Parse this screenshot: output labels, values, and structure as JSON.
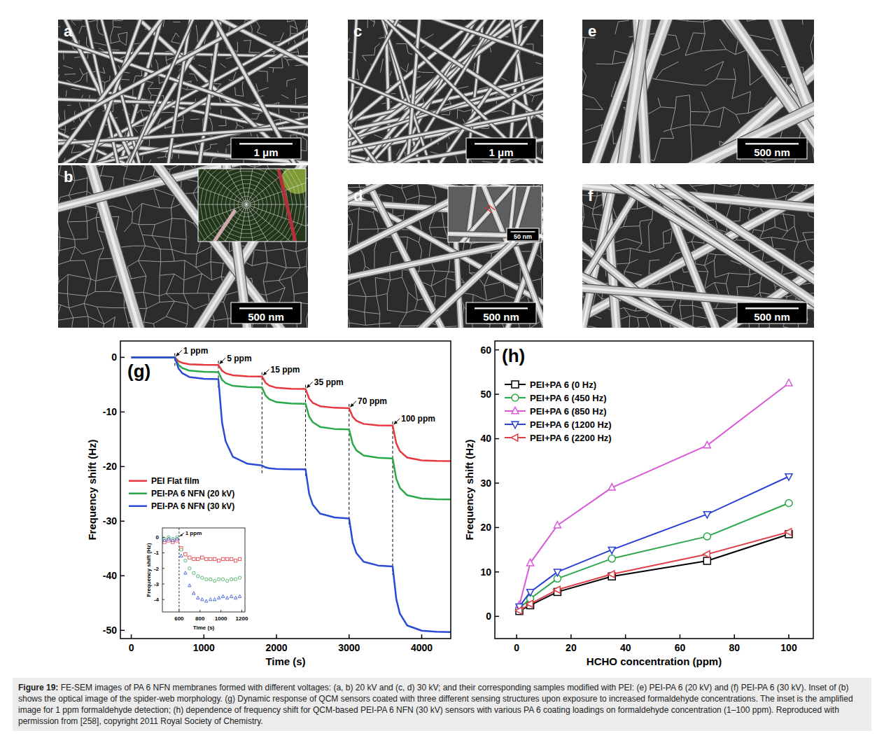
{
  "figure": {
    "panels": [
      {
        "letter": "a",
        "scale_bar": "1 μm"
      },
      {
        "letter": "b",
        "scale_bar": "500 nm"
      },
      {
        "letter": "c",
        "scale_bar": "1 μm"
      },
      {
        "letter": "d",
        "scale_bar": "500 nm",
        "inset_scale_bar": "50 nm"
      },
      {
        "letter": "e",
        "scale_bar": "500 nm"
      },
      {
        "letter": "f",
        "scale_bar": "500 nm"
      }
    ]
  },
  "chart_data": [
    {
      "type": "line",
      "title": "(g)",
      "x_label": "Time (s)",
      "y_label": "Frequency shift (Hz)",
      "x": [
        0,
        600,
        650,
        700,
        800,
        1000,
        1200,
        1250,
        1300,
        1400,
        1600,
        1800,
        1850,
        1900,
        2000,
        2200,
        2400,
        2450,
        2500,
        2600,
        2800,
        3000,
        3050,
        3100,
        3200,
        3400,
        3600,
        3650,
        3700,
        3800,
        4000,
        4200,
        4400
      ],
      "series": [
        {
          "name": "PEI Flat film",
          "color": "#e8373f",
          "values": [
            0,
            0,
            -0.7,
            -1.0,
            -1.26,
            -1.37,
            -1.4,
            -2.45,
            -2.91,
            -3.29,
            -3.46,
            -3.5,
            -4.65,
            -5.16,
            -5.57,
            -5.75,
            -5.8,
            -7.55,
            -8.32,
            -8.95,
            -9.23,
            -9.3,
            -10.9,
            -11.6,
            -12.18,
            -12.44,
            -12.5,
            -15.75,
            -17.18,
            -18.35,
            -18.87,
            -18.97,
            -19.0
          ]
        },
        {
          "name": "PEI-PA 6 NFN (20 kV)",
          "color": "#2aa84a",
          "values": [
            0,
            0,
            -1.35,
            -1.94,
            -2.43,
            -2.65,
            -2.7,
            -4.1,
            -4.72,
            -5.22,
            -5.44,
            -5.5,
            -7.0,
            -7.66,
            -8.2,
            -8.44,
            -8.5,
            -10.85,
            -11.88,
            -12.73,
            -13.11,
            -13.2,
            -15.85,
            -17.02,
            -17.97,
            -18.39,
            -18.5,
            -22.25,
            -23.9,
            -25.25,
            -25.85,
            -25.97,
            -26.0
          ]
        },
        {
          "name": "PEI-PA 6 NFN (30 kV)",
          "color": "#2b4bd6",
          "values": [
            0,
            0,
            -2.0,
            -2.88,
            -3.6,
            -3.92,
            -4.0,
            -11.9,
            -15.38,
            -18.22,
            -19.48,
            -19.8,
            -20.15,
            -20.3,
            -20.43,
            -20.49,
            -20.5,
            -25.0,
            -26.98,
            -28.6,
            -29.32,
            -29.5,
            -33.9,
            -35.84,
            -37.42,
            -38.12,
            -38.3,
            -44.3,
            -46.94,
            -49.1,
            -50.06,
            -50.26,
            -50.3
          ]
        }
      ],
      "xlim": [
        -150,
        4400
      ],
      "ylim": [
        -51.5,
        3
      ],
      "xticks": [
        0,
        1000,
        2000,
        3000,
        4000
      ],
      "yticks": [
        0,
        -10,
        -20,
        -30,
        -40,
        -50
      ],
      "legend": "left",
      "annotations": [
        {
          "x": 600,
          "text": "1 ppm"
        },
        {
          "x": 1200,
          "text": "5 ppm"
        },
        {
          "x": 1800,
          "text": "15 ppm"
        },
        {
          "x": 2400,
          "text": "35 ppm"
        },
        {
          "x": 3000,
          "text": "70 ppm"
        },
        {
          "x": 3600,
          "text": "100 ppm"
        }
      ],
      "inset": {
        "type": "scatter",
        "x_label": "Time (s)",
        "y_label": "Frequency shift (Hz)",
        "x": [
          460,
          500,
          540,
          580,
          620,
          660,
          700,
          740,
          780,
          820,
          860,
          900,
          940,
          980,
          1020,
          1060,
          1100,
          1140,
          1180
        ],
        "series": [
          {
            "color": "#e8373f",
            "marker": "square",
            "values": [
              -0.3,
              -0.2,
              -0.3,
              -0.2,
              -0.7,
              -1.1,
              -1.3,
              -1.4,
              -1.4,
              -1.3,
              -1.4,
              -1.4,
              -1.4,
              -1.5,
              -1.4,
              -1.4,
              -1.4,
              -1.5,
              -1.4
            ]
          },
          {
            "color": "#2aa84a",
            "marker": "circle",
            "values": [
              -0.1,
              0,
              -0.1,
              0,
              -0.8,
              -1.5,
              -2.0,
              -2.3,
              -2.5,
              -2.6,
              -2.7,
              -2.7,
              -2.8,
              -2.7,
              -2.7,
              -2.8,
              -2.7,
              -2.7,
              -2.6
            ]
          },
          {
            "color": "#2b4bd6",
            "marker": "triangle-up",
            "values": [
              -0.2,
              -0.1,
              -0.2,
              -0.1,
              -1.2,
              -2.3,
              -3.1,
              -3.6,
              -3.9,
              -4.0,
              -4.1,
              -4.0,
              -4.0,
              -3.9,
              -3.8,
              -3.9,
              -3.8,
              -3.9,
              -3.8
            ]
          }
        ],
        "xlim": [
          440,
          1230
        ],
        "ylim": [
          -4.8,
          0.6
        ],
        "xticks": [
          600,
          800,
          1000,
          1200
        ],
        "yticks": [
          0,
          -1,
          -2,
          -3,
          -4
        ],
        "annotations": [
          {
            "x": 600,
            "text": "1 ppm"
          }
        ]
      }
    },
    {
      "type": "line",
      "title": "(h)",
      "x_label": "HCHO concentration (ppm)",
      "y_label": "Frequency shift (Hz)",
      "x": [
        1,
        5,
        15,
        35,
        70,
        100
      ],
      "series": [
        {
          "name": "PEI+PA 6 (0 Hz)",
          "color": "#000000",
          "marker": "square",
          "values": [
            1.2,
            2.5,
            5.5,
            9,
            12.5,
            18.5
          ]
        },
        {
          "name": "PEI+PA 6 (450 Hz)",
          "color": "#2aa84a",
          "marker": "circle",
          "values": [
            1.8,
            4,
            8.5,
            13,
            18,
            25.5
          ]
        },
        {
          "name": "PEI+PA 6 (850 Hz)",
          "color": "#d957d9",
          "marker": "triangle-up",
          "values": [
            2.5,
            12,
            20.5,
            29,
            38.5,
            52.5
          ]
        },
        {
          "name": "PEI+PA 6 (1200 Hz)",
          "color": "#2a3fd6",
          "marker": "triangle-down",
          "values": [
            2.2,
            5.5,
            10,
            15,
            23,
            31.5
          ]
        },
        {
          "name": "PEI+PA 6 (2200 Hz)",
          "color": "#e0404a",
          "marker": "triangle-left",
          "values": [
            1.3,
            2.8,
            6,
            9.5,
            14,
            19
          ]
        }
      ],
      "xlim": [
        -8,
        109
      ],
      "ylim": [
        -5,
        62
      ],
      "xticks": [
        0,
        20,
        40,
        60,
        80,
        100
      ],
      "yticks": [
        0,
        10,
        20,
        30,
        40,
        50,
        60
      ],
      "legend": "upper left"
    }
  ],
  "caption": {
    "label": "Figure 19:",
    "text": "FE-SEM images of PA 6 NFN membranes formed with different voltages: (a, b) 20 kV and (c, d) 30 kV; and their corresponding samples modified with PEI: (e) PEI-PA 6 (20 kV) and (f) PEI-PA 6 (30 kV). Inset of (b) shows the optical image of the spider-web morphology. (g) Dynamic response of QCM sensors coated with three different sensing structures upon exposure to increased formaldehyde concentrations. The inset is the amplified image for 1 ppm formaldehyde detection; (h) dependence of frequency shift for QCM-based PEI-PA 6 NFN (30 kV) sensors with various PA 6 coating loadings on formaldehyde concentration (1–100 ppm). Reproduced with permission from [258], copyright 2011 Royal Society of Chemistry."
  }
}
